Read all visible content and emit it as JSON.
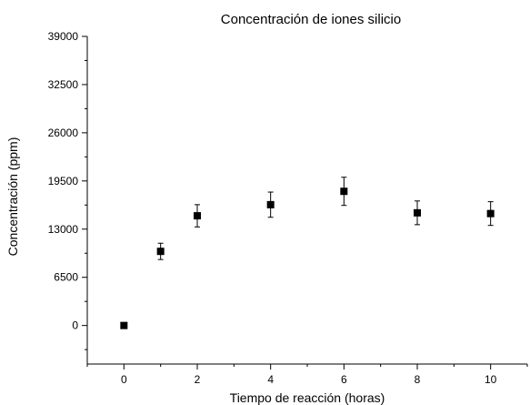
{
  "chart_data": {
    "type": "scatter",
    "title": "Concentración de iones silicio",
    "xlabel": "Tiempo de reacción (horas)",
    "ylabel": "Concentración (ppm)",
    "xlim": [
      -1,
      11
    ],
    "ylim": [
      -5200,
      39000
    ],
    "x_ticks": [
      0,
      2,
      4,
      6,
      8,
      10
    ],
    "x_tick_labels": [
      "0",
      "2",
      "4",
      "6",
      "8",
      "10"
    ],
    "y_ticks": [
      0,
      6500,
      13000,
      19500,
      26000,
      32500,
      39000
    ],
    "y_tick_labels": [
      "0",
      "6500",
      "13000",
      "19500",
      "26000",
      "32500",
      "39000"
    ],
    "grid": false,
    "legend": "none",
    "marker": "square",
    "marker_color": "#000000",
    "points": [
      {
        "x": 0,
        "y": 0,
        "err": 0
      },
      {
        "x": 1,
        "y": 10000,
        "err": 1100
      },
      {
        "x": 2,
        "y": 14800,
        "err": 1500
      },
      {
        "x": 4,
        "y": 16300,
        "err": 1700
      },
      {
        "x": 6,
        "y": 18100,
        "err": 1900
      },
      {
        "x": 8,
        "y": 15200,
        "err": 1600
      },
      {
        "x": 10,
        "y": 15100,
        "err": 1600
      }
    ]
  }
}
